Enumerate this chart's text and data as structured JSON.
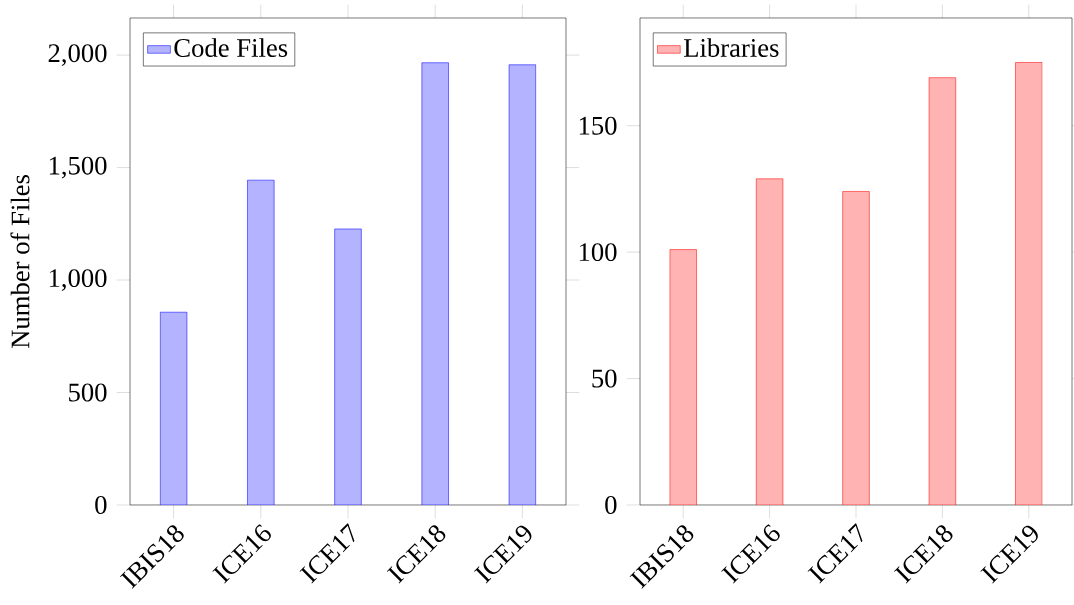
{
  "chart_data": [
    {
      "type": "bar",
      "categories": [
        "IBIS18",
        "ICE16",
        "ICE17",
        "ICE18",
        "ICE19"
      ],
      "ylabel": "Number of Files",
      "series": [
        {
          "name": "Code Files",
          "color": "#b3b3ff",
          "values": [
            857,
            1444,
            1227,
            1966,
            1957
          ]
        }
      ],
      "ylim": [
        0,
        2165
      ],
      "yticks": [
        0,
        500,
        {
          "value": 1000,
          "label": "1,000"
        },
        {
          "value": 1500,
          "label": "1,500"
        },
        {
          "value": 2000,
          "label": "2,000"
        }
      ],
      "legend": "top left"
    },
    {
      "type": "bar",
      "categories": [
        "IBIS18",
        "ICE16",
        "ICE17",
        "ICE18",
        "ICE19"
      ],
      "series": [
        {
          "name": "Libraries",
          "color": "#ffb3b3",
          "values": [
            101,
            129,
            124,
            169,
            175
          ]
        }
      ],
      "ylim": [
        0,
        192.6
      ],
      "yticks": [
        0,
        50,
        100,
        150
      ],
      "legend": "top left"
    }
  ]
}
